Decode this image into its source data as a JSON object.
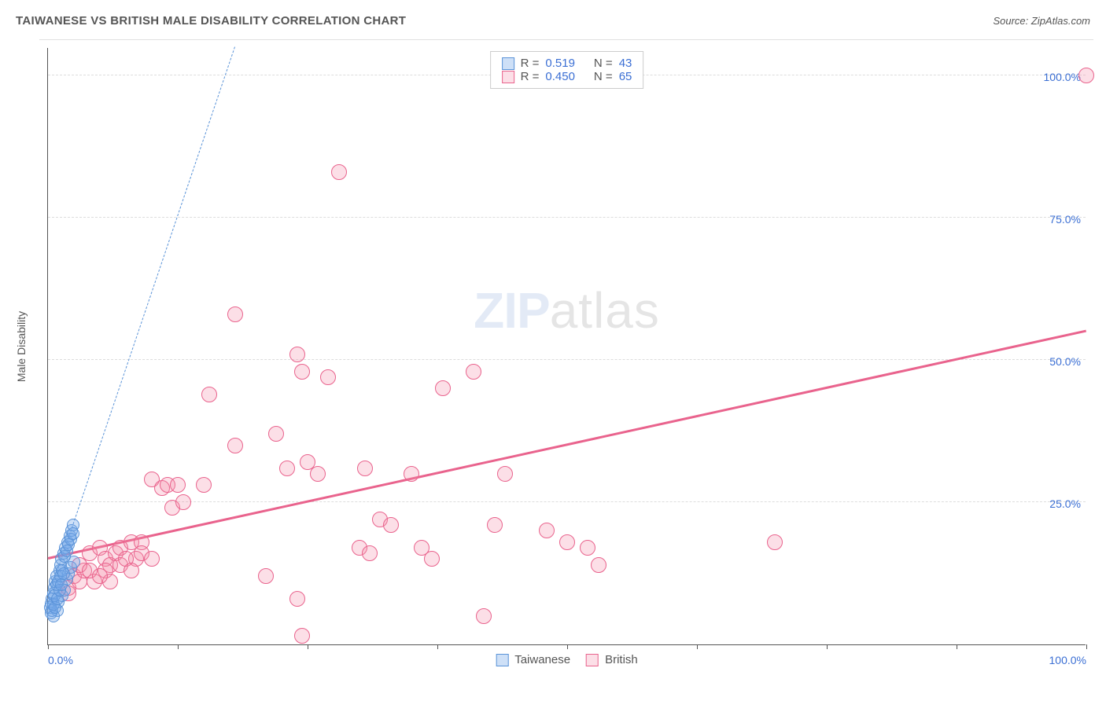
{
  "header": {
    "title": "TAIWANESE VS BRITISH MALE DISABILITY CORRELATION CHART",
    "source": "Source: ZipAtlas.com"
  },
  "chart": {
    "type": "scatter",
    "y_axis_label": "Male Disability",
    "xlim": [
      0,
      100
    ],
    "ylim": [
      0,
      105
    ],
    "x_ticks": [
      0,
      12.5,
      25,
      37.5,
      50,
      62.5,
      75,
      87.5,
      100
    ],
    "x_tick_labels": {
      "0": "0.0%",
      "100": "100.0%"
    },
    "y_gridlines": [
      25,
      50,
      75,
      100
    ],
    "y_tick_labels": {
      "25": "25.0%",
      "50": "50.0%",
      "75": "75.0%",
      "100": "100.0%"
    },
    "background_color": "#ffffff",
    "grid_color": "#dddddd",
    "axis_color": "#555555",
    "label_color": "#3b6fd4",
    "title_fontsize": 15,
    "tick_fontsize": 14,
    "watermark": {
      "zip": "ZIP",
      "atlas": "atlas"
    },
    "series": {
      "taiwanese": {
        "label": "Taiwanese",
        "marker_color_fill": "rgba(114,165,233,0.35)",
        "marker_color_border": "#5a93d8",
        "marker_radius": 8,
        "trend_color": "#5a93d8",
        "trend_style": "dashed",
        "trend": {
          "x0": 0,
          "y0": 8,
          "x1": 18,
          "y1": 105
        },
        "points": [
          [
            0.2,
            6.5
          ],
          [
            0.3,
            7.2
          ],
          [
            0.4,
            8.0
          ],
          [
            0.5,
            9.0
          ],
          [
            0.6,
            10.0
          ],
          [
            0.7,
            11.0
          ],
          [
            0.8,
            12.0
          ],
          [
            0.9,
            6.0
          ],
          [
            1.0,
            7.5
          ],
          [
            1.1,
            13.0
          ],
          [
            1.2,
            14.0
          ],
          [
            1.3,
            15.0
          ],
          [
            1.4,
            8.5
          ],
          [
            1.5,
            16.0
          ],
          [
            1.6,
            9.5
          ],
          [
            1.7,
            17.0
          ],
          [
            1.8,
            11.5
          ],
          [
            1.9,
            18.0
          ],
          [
            2.0,
            12.5
          ],
          [
            2.1,
            19.0
          ],
          [
            2.2,
            13.5
          ],
          [
            2.3,
            20.0
          ],
          [
            2.4,
            21.0
          ],
          [
            2.5,
            14.5
          ],
          [
            0.3,
            5.5
          ],
          [
            0.4,
            6.0
          ],
          [
            0.5,
            7.0
          ],
          [
            0.6,
            8.5
          ],
          [
            0.8,
            10.5
          ],
          [
            1.0,
            11.0
          ],
          [
            1.2,
            12.0
          ],
          [
            1.4,
            13.0
          ],
          [
            1.6,
            15.5
          ],
          [
            1.8,
            16.5
          ],
          [
            2.0,
            17.5
          ],
          [
            2.2,
            18.5
          ],
          [
            2.4,
            19.5
          ],
          [
            0.5,
            5.0
          ],
          [
            0.7,
            6.5
          ],
          [
            0.9,
            8.0
          ],
          [
            1.1,
            9.5
          ],
          [
            1.3,
            10.5
          ],
          [
            1.5,
            12.5
          ]
        ]
      },
      "british": {
        "label": "British",
        "marker_color_fill": "rgba(243,140,170,0.28)",
        "marker_color_border": "#e9638d",
        "marker_radius": 10,
        "trend_color": "#e9638d",
        "trend_style": "solid",
        "trend": {
          "x0": 0,
          "y0": 15,
          "x1": 100,
          "y1": 55
        },
        "points": [
          [
            2,
            10
          ],
          [
            2.5,
            12
          ],
          [
            3,
            11
          ],
          [
            3.5,
            13
          ],
          [
            4,
            16
          ],
          [
            5,
            17
          ],
          [
            5.5,
            15
          ],
          [
            6,
            14
          ],
          [
            6.5,
            16
          ],
          [
            7,
            17
          ],
          [
            8,
            18
          ],
          [
            8.5,
            15
          ],
          [
            9,
            18
          ],
          [
            10,
            29
          ],
          [
            11,
            27.5
          ],
          [
            11.5,
            28
          ],
          [
            12,
            24
          ],
          [
            12.5,
            28
          ],
          [
            13,
            25
          ],
          [
            15,
            28
          ],
          [
            15.5,
            44
          ],
          [
            18,
            35
          ],
          [
            18,
            58
          ],
          [
            21,
            12
          ],
          [
            22,
            37
          ],
          [
            23,
            31
          ],
          [
            24,
            51
          ],
          [
            24.5,
            48
          ],
          [
            24,
            8
          ],
          [
            24.5,
            1.5
          ],
          [
            25,
            32
          ],
          [
            26,
            30
          ],
          [
            27,
            47
          ],
          [
            28,
            83
          ],
          [
            30,
            17
          ],
          [
            30.5,
            31
          ],
          [
            31,
            16
          ],
          [
            32,
            22
          ],
          [
            33,
            21
          ],
          [
            35,
            30
          ],
          [
            36,
            17
          ],
          [
            37,
            15
          ],
          [
            38,
            45
          ],
          [
            41,
            48
          ],
          [
            42,
            5
          ],
          [
            43,
            21
          ],
          [
            44,
            30
          ],
          [
            48,
            20
          ],
          [
            50,
            18
          ],
          [
            52,
            17
          ],
          [
            53,
            14
          ],
          [
            70,
            18
          ],
          [
            100,
            100
          ],
          [
            4.5,
            11
          ],
          [
            5.5,
            13
          ],
          [
            6,
            11
          ],
          [
            7,
            14
          ],
          [
            7.5,
            15
          ],
          [
            8,
            13
          ],
          [
            9,
            16
          ],
          [
            10,
            15
          ],
          [
            3,
            14
          ],
          [
            4,
            13
          ],
          [
            5,
            12
          ],
          [
            2,
            9
          ]
        ]
      }
    },
    "legend_top": {
      "series1": {
        "swatch_fill": "rgba(114,165,233,0.35)",
        "swatch_border": "#5a93d8",
        "R_label": "R =",
        "R": "0.519",
        "N_label": "N =",
        "N": "43"
      },
      "series2": {
        "swatch_fill": "rgba(243,140,170,0.28)",
        "swatch_border": "#e9638d",
        "R_label": "R =",
        "R": "0.450",
        "N_label": "N =",
        "N": "65"
      }
    },
    "legend_bottom": {
      "item1": {
        "swatch_fill": "rgba(114,165,233,0.35)",
        "swatch_border": "#5a93d8",
        "label": "Taiwanese"
      },
      "item2": {
        "swatch_fill": "rgba(243,140,170,0.28)",
        "swatch_border": "#e9638d",
        "label": "British"
      }
    }
  }
}
